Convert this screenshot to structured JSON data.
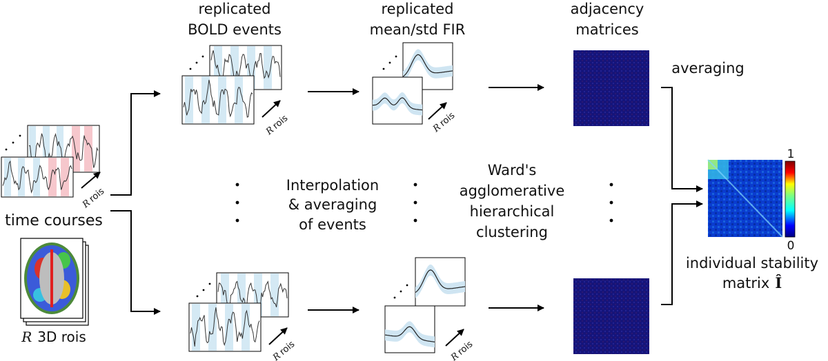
{
  "labels": {
    "time_courses": "time courses",
    "rois_3d_prefix": "R",
    "rois_3d": "3D rois",
    "replicated_bold_1": "replicated",
    "replicated_bold_2": "BOLD events",
    "replicated_fir_1": "replicated",
    "replicated_fir_2": "mean/std FIR",
    "adjacency_1": "adjacency",
    "adjacency_2": "matrices",
    "averaging": "averaging",
    "interp_1": "Interpolation",
    "interp_2": "& averaging",
    "interp_3": "of events",
    "ward_1": "Ward's",
    "ward_2": "agglomerative",
    "ward_3": "hierarchical",
    "ward_4": "clustering",
    "stability_1": "individual stability",
    "stability_2": "matrix",
    "stability_symbol": "Î",
    "colorbar_max": "1",
    "colorbar_min": "0",
    "r_symbol": "R",
    "rois": "rois"
  },
  "colors": {
    "matrix_background": "#15147a",
    "highlight_blue": "#d4e9f4",
    "highlight_red": "#f6c7cc",
    "fir_band": "#cfe5f2",
    "arrow": "#000000"
  }
}
